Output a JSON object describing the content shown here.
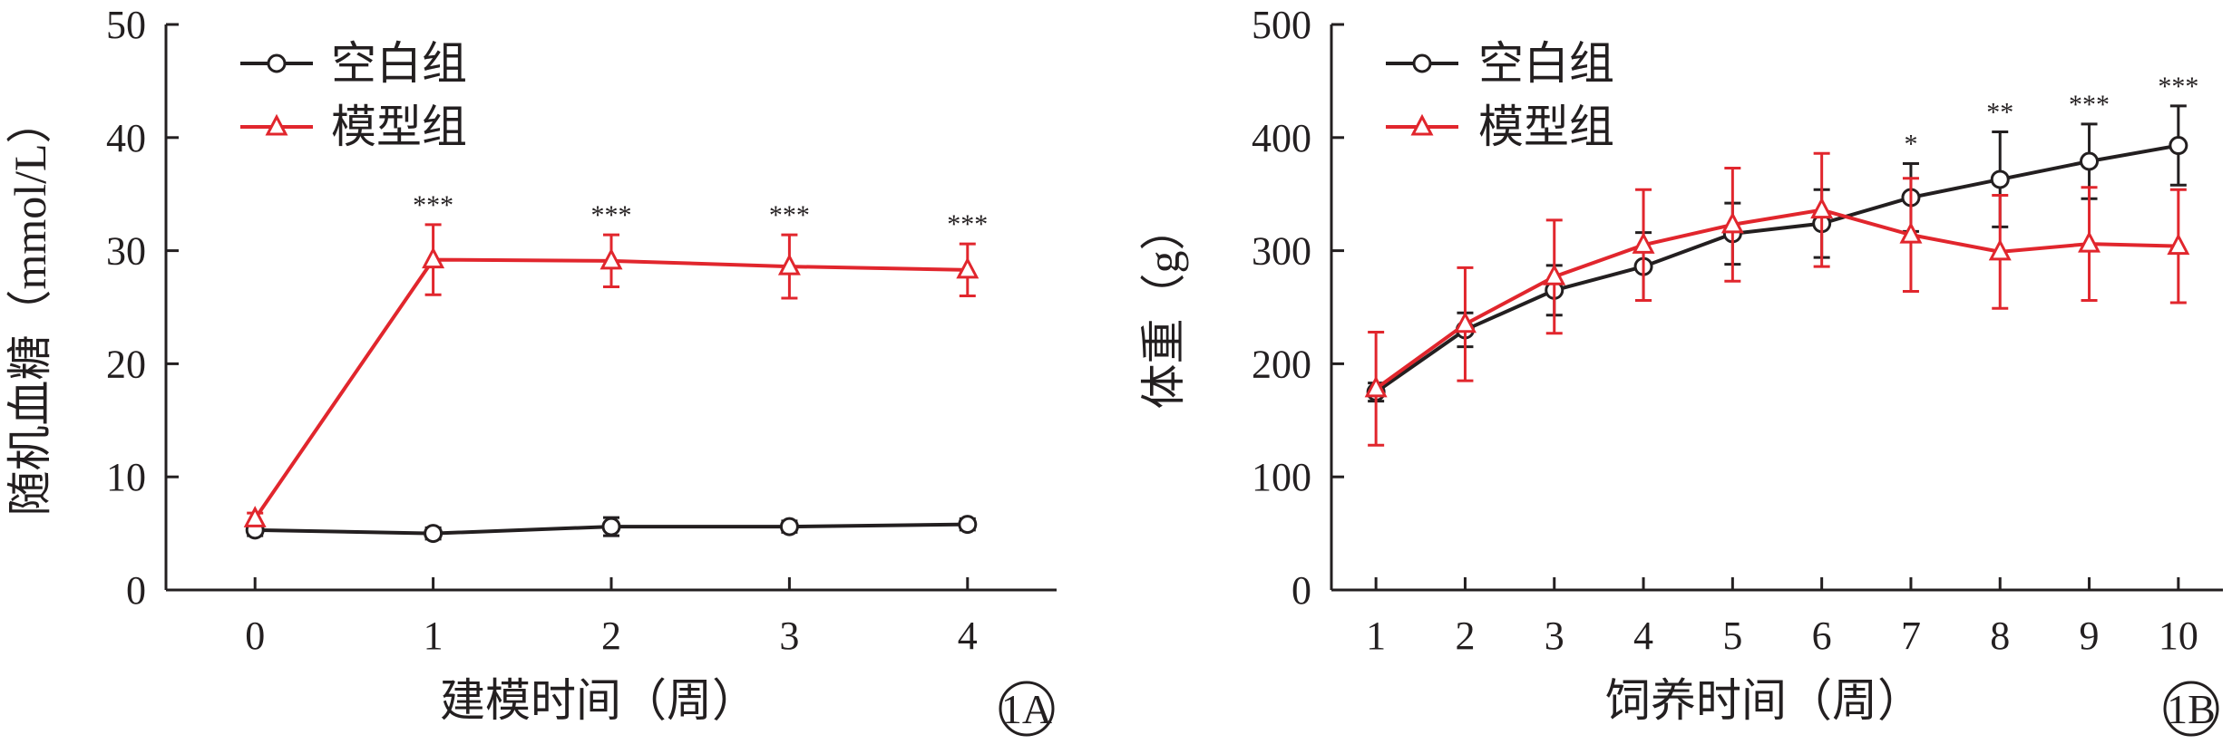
{
  "chart_data": [
    {
      "panel_label": "1A",
      "type": "line",
      "xlabel": "建模时间（周）",
      "ylabel": "随机血糖（mmol/L）",
      "x": [
        0,
        1,
        2,
        3,
        4
      ],
      "xlim": [
        -0.5,
        4.5
      ],
      "ylim": [
        0,
        50
      ],
      "yticks": [
        0,
        10,
        20,
        30,
        40,
        50
      ],
      "grid": false,
      "legend_position": "top-left",
      "series": [
        {
          "name": "空白组",
          "color": "#231f20",
          "marker": "circle",
          "values": [
            5.3,
            5.0,
            5.6,
            5.6,
            5.8
          ],
          "errors": [
            0.5,
            0.5,
            0.8,
            0.5,
            0.5
          ]
        },
        {
          "name": "模型组",
          "color": "#e1262d",
          "marker": "triangle",
          "values": [
            6.3,
            29.2,
            29.1,
            28.6,
            28.3
          ],
          "errors": [
            0.5,
            3.1,
            2.3,
            2.8,
            2.3
          ]
        }
      ],
      "annotations": [
        {
          "x": 1,
          "text": "***"
        },
        {
          "x": 2,
          "text": "***"
        },
        {
          "x": 3,
          "text": "***"
        },
        {
          "x": 4,
          "text": "***"
        }
      ]
    },
    {
      "panel_label": "1B",
      "type": "line",
      "xlabel": "饲养时间（周）",
      "ylabel": "体重（g）",
      "x": [
        1,
        2,
        3,
        4,
        5,
        6,
        7,
        8,
        9,
        10
      ],
      "xlim": [
        0.5,
        10.5
      ],
      "ylim": [
        0,
        500
      ],
      "yticks": [
        0,
        100,
        200,
        300,
        400,
        500
      ],
      "grid": false,
      "legend_position": "top-left",
      "series": [
        {
          "name": "空白组",
          "color": "#231f20",
          "marker": "circle",
          "values": [
            175,
            230,
            265,
            286,
            315,
            324,
            347,
            363,
            379,
            393
          ],
          "errors": [
            8,
            15,
            22,
            30,
            27,
            30,
            30,
            42,
            33,
            35
          ]
        },
        {
          "name": "模型组",
          "color": "#e1262d",
          "marker": "triangle",
          "values": [
            178,
            235,
            277,
            305,
            323,
            336,
            314,
            299,
            306,
            304
          ],
          "errors": [
            50,
            50,
            50,
            49,
            50,
            50,
            50,
            50,
            50,
            50
          ]
        }
      ],
      "annotations": [
        {
          "x": 7,
          "text": "*"
        },
        {
          "x": 8,
          "text": "**"
        },
        {
          "x": 9,
          "text": "***"
        },
        {
          "x": 10,
          "text": "***"
        }
      ]
    }
  ]
}
